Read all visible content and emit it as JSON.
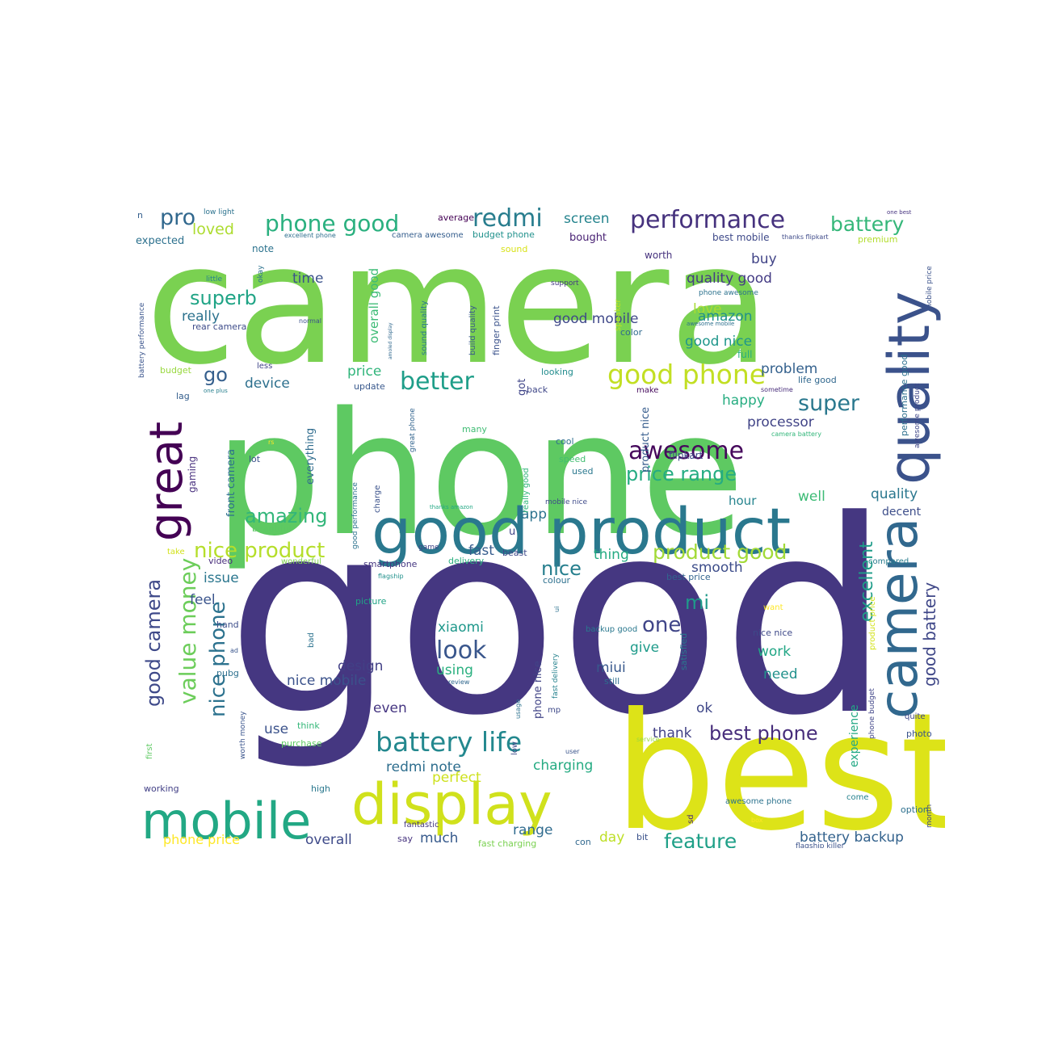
{
  "words": [
    {
      "t": "camera",
      "c": "#7ad151"
    },
    {
      "t": "phone",
      "c": "#5ec962"
    },
    {
      "t": "good",
      "c": "#453781"
    },
    {
      "t": "best",
      "c": "#dde318"
    },
    {
      "t": "good product",
      "c": "#2a788e"
    },
    {
      "t": "display",
      "c": "#d0e11c"
    },
    {
      "t": "mobile",
      "c": "#22a884"
    },
    {
      "t": "quality",
      "c": "#3b528b"
    },
    {
      "t": "camera",
      "c": "#31688e"
    },
    {
      "t": "great",
      "c": "#440154"
    },
    {
      "t": "battery life",
      "c": "#23888e"
    },
    {
      "t": "good phone",
      "c": "#c2df23"
    },
    {
      "t": "performance",
      "c": "#46327e"
    },
    {
      "t": "phone good",
      "c": "#2ab07f"
    },
    {
      "t": "redmi",
      "c": "#287d8e"
    },
    {
      "t": "battery",
      "c": "#35b779"
    },
    {
      "t": "pro",
      "c": "#31688e"
    },
    {
      "t": "better",
      "c": "#1f9e89"
    },
    {
      "t": "awesome",
      "c": "#46085c"
    },
    {
      "t": "price range",
      "c": "#25ac82"
    },
    {
      "t": "super",
      "c": "#2a788e"
    },
    {
      "t": "superb",
      "c": "#20a486"
    },
    {
      "t": "value money",
      "c": "#6ccd5a"
    },
    {
      "t": "nice product",
      "c": "#b5de2b"
    },
    {
      "t": "product good",
      "c": "#a2da37"
    },
    {
      "t": "good camera",
      "c": "#3e4989"
    },
    {
      "t": "nice phone",
      "c": "#2c728e"
    },
    {
      "t": "amazing",
      "c": "#32b67a"
    },
    {
      "t": "excellent",
      "c": "#1e9c89"
    },
    {
      "t": "good battery",
      "c": "#3f4788"
    },
    {
      "t": "look",
      "c": "#39568c"
    },
    {
      "t": "one",
      "c": "#404588"
    },
    {
      "t": "feature",
      "c": "#1fa088"
    },
    {
      "t": "best phone",
      "c": "#472d7b"
    },
    {
      "t": "go",
      "c": "#355f8d"
    },
    {
      "t": "nice",
      "c": "#277f8e"
    },
    {
      "t": "mi",
      "c": "#1f9a8a"
    },
    {
      "t": "loved",
      "c": "#addc30"
    },
    {
      "t": "screen",
      "c": "#25848e"
    },
    {
      "t": "quality good",
      "c": "#443b84"
    },
    {
      "t": "buy",
      "c": "#414487"
    },
    {
      "t": "time",
      "c": "#3b528b"
    },
    {
      "t": "really",
      "c": "#2c728e"
    },
    {
      "t": "love",
      "c": "#a8db34"
    },
    {
      "t": "amazon",
      "c": "#21918c"
    },
    {
      "t": "good mobile",
      "c": "#3f4889"
    },
    {
      "t": "good nice",
      "c": "#1f968b"
    },
    {
      "t": "overall good",
      "c": "#3cbb75"
    },
    {
      "t": "device",
      "c": "#2d708e"
    },
    {
      "t": "price",
      "c": "#31b57b"
    },
    {
      "t": "processor",
      "c": "#414487"
    },
    {
      "t": "problem",
      "c": "#34618d"
    },
    {
      "t": "happy",
      "c": "#27ad81"
    },
    {
      "t": "fast",
      "c": "#365c8d"
    },
    {
      "t": "issue",
      "c": "#2a768e"
    },
    {
      "t": "feel",
      "c": "#3a548c"
    },
    {
      "t": "thing",
      "c": "#25ab82"
    },
    {
      "t": "smooth",
      "c": "#3d4d8a"
    },
    {
      "t": "app",
      "c": "#2c738e"
    },
    {
      "t": "well",
      "c": "#3cbb75"
    },
    {
      "t": "quality",
      "c": "#2a778e"
    },
    {
      "t": "hour",
      "c": "#25848e"
    },
    {
      "t": "decent",
      "c": "#3d4e8a"
    },
    {
      "t": "xiaomi",
      "c": "#1f988b"
    },
    {
      "t": "design",
      "c": "#424086"
    },
    {
      "t": "nice mobile",
      "c": "#3b528b"
    },
    {
      "t": "using",
      "c": "#2ab07f"
    },
    {
      "t": "give",
      "c": "#1e9b8a"
    },
    {
      "t": "miui",
      "c": "#38588c"
    },
    {
      "t": "work",
      "c": "#21a685"
    },
    {
      "t": "need",
      "c": "#21918c"
    },
    {
      "t": "even",
      "c": "#453581"
    },
    {
      "t": "use",
      "c": "#3b528b"
    },
    {
      "t": "redmi note",
      "c": "#2e6e8e"
    },
    {
      "t": "charging",
      "c": "#25ab82"
    },
    {
      "t": "perfect",
      "c": "#cde11d"
    },
    {
      "t": "thank",
      "c": "#424186"
    },
    {
      "t": "ok",
      "c": "#3f4788"
    },
    {
      "t": "overall",
      "c": "#3e4a89"
    },
    {
      "t": "much",
      "c": "#375a8c"
    },
    {
      "t": "range",
      "c": "#2f6b8e"
    },
    {
      "t": "day",
      "c": "#bddf26"
    },
    {
      "t": "battery backup",
      "c": "#33628d"
    },
    {
      "t": "phone price",
      "c": "#fde725"
    },
    {
      "t": "expected",
      "c": "#2d718e"
    },
    {
      "t": "average",
      "c": "#440154"
    },
    {
      "t": "bought",
      "c": "#482173"
    },
    {
      "t": "worth",
      "c": "#46327e"
    },
    {
      "t": "best mobile",
      "c": "#3e4989"
    },
    {
      "t": "premium",
      "c": "#b2dd2d"
    },
    {
      "t": "note",
      "c": "#2c738e"
    },
    {
      "t": "excellent phone",
      "c": "#2e6f8e"
    },
    {
      "t": "camera awesome",
      "c": "#355e8d"
    },
    {
      "t": "budget phone",
      "c": "#21918c"
    },
    {
      "t": "sound",
      "c": "#d8e219"
    },
    {
      "t": "rear camera",
      "c": "#3e4c8a"
    },
    {
      "t": "little",
      "c": "#26828e"
    },
    {
      "t": "support",
      "c": "#443983"
    },
    {
      "t": "phone awesome",
      "c": "#2c728e"
    },
    {
      "t": "awesome mobile",
      "c": "#2d708e"
    },
    {
      "t": "color",
      "c": "#306a8e"
    },
    {
      "t": "full",
      "c": "#29af7f"
    },
    {
      "t": "life good",
      "c": "#31688e"
    },
    {
      "t": "sometime",
      "c": "#472c7a"
    },
    {
      "t": "make",
      "c": "#460a5d"
    },
    {
      "t": "back",
      "c": "#3f4788"
    },
    {
      "t": "update",
      "c": "#38588c"
    },
    {
      "t": "looking",
      "c": "#228c8d"
    },
    {
      "t": "camera battery",
      "c": "#32b67a"
    },
    {
      "t": "cool",
      "c": "#2e6f8e"
    },
    {
      "t": "speed",
      "c": "#42be71"
    },
    {
      "t": "used",
      "c": "#2a788e"
    },
    {
      "t": "flipkart",
      "c": "#3f4889"
    },
    {
      "t": "lot",
      "c": "#3b528b"
    },
    {
      "t": "gaming",
      "c": "#472f7d"
    },
    {
      "t": "budget",
      "c": "#98d83e"
    },
    {
      "t": "lag",
      "c": "#355f8d"
    },
    {
      "t": "less",
      "c": "#404588"
    },
    {
      "t": "normal",
      "c": "#3b528b"
    },
    {
      "t": "one plus",
      "c": "#277f8e"
    },
    {
      "t": "many",
      "c": "#3fbc73"
    },
    {
      "t": "beautiful",
      "c": "#5cc863"
    },
    {
      "t": "game",
      "c": "#404588"
    },
    {
      "t": "smartphone",
      "c": "#453781"
    },
    {
      "t": "delivery",
      "c": "#2ab07f"
    },
    {
      "t": "beast",
      "c": "#3e4989"
    },
    {
      "t": "colour",
      "c": "#2d708e"
    },
    {
      "t": "best price",
      "c": "#32648e"
    },
    {
      "t": "flagship",
      "c": "#21918c"
    },
    {
      "t": "video",
      "c": "#472d7b"
    },
    {
      "t": "take",
      "c": "#d2e21b"
    },
    {
      "t": "wonderful",
      "c": "#7fd34e"
    },
    {
      "t": "picture",
      "c": "#20a386"
    },
    {
      "t": "hand",
      "c": "#3d4e8a"
    },
    {
      "t": "pubg",
      "c": "#2d708e"
    },
    {
      "t": "ad",
      "c": "#39558c"
    },
    {
      "t": "bad",
      "c": "#2c728e"
    },
    {
      "t": "review",
      "c": "#31688e"
    },
    {
      "t": "still",
      "c": "#2e6d8e"
    },
    {
      "t": "backup good",
      "c": "#2a788e"
    },
    {
      "t": "want",
      "c": "#fde725"
    },
    {
      "t": "nice nice",
      "c": "#3e4989"
    },
    {
      "t": "quite",
      "c": "#3f4788"
    },
    {
      "t": "photo",
      "c": "#3a548c"
    },
    {
      "t": "option",
      "c": "#2d708e"
    },
    {
      "t": "come",
      "c": "#26828e"
    },
    {
      "t": "awesome phone",
      "c": "#2c738e"
    },
    {
      "t": "box",
      "c": "#fde725"
    },
    {
      "t": "flagship killer",
      "c": "#3b528b"
    },
    {
      "t": "think",
      "c": "#35b779"
    },
    {
      "t": "purchase",
      "c": "#5ec962"
    },
    {
      "t": "high",
      "c": "#2a788e"
    },
    {
      "t": "working",
      "c": "#424086"
    },
    {
      "t": "fantastic",
      "c": "#453781"
    },
    {
      "t": "say",
      "c": "#46337f"
    },
    {
      "t": "con",
      "c": "#31688e"
    },
    {
      "t": "bit",
      "c": "#3b528b"
    },
    {
      "t": "fast charging",
      "c": "#7ad151"
    },
    {
      "t": "mp",
      "c": "#3e4989"
    },
    {
      "t": "usage",
      "c": "#2c728e"
    },
    {
      "t": "user",
      "c": "#3a548c"
    },
    {
      "t": "service",
      "c": "#98d83e"
    },
    {
      "t": "sd",
      "c": "#482878"
    },
    {
      "t": "thanks amazon",
      "c": "#22a884"
    },
    {
      "t": "mobile nice",
      "c": "#3e4a89"
    },
    {
      "t": "rs",
      "c": "#fde725"
    },
    {
      "t": "compared",
      "c": "#287c8e"
    },
    {
      "t": "n",
      "c": "#355f8d"
    },
    {
      "t": "low light",
      "c": "#2c728e"
    },
    {
      "t": "one best",
      "c": "#46337f"
    },
    {
      "t": "thanks flipkart",
      "c": "#3e4a89"
    },
    {
      "t": "battery performance",
      "c": "#3a548c"
    },
    {
      "t": "okay",
      "c": "#2c728e"
    },
    {
      "t": "amoled display",
      "c": "#31688e"
    },
    {
      "t": "sound quality",
      "c": "#2a788e"
    },
    {
      "t": "build quality",
      "c": "#38588c"
    },
    {
      "t": "finger print",
      "c": "#3b528b"
    },
    {
      "t": "speaker",
      "c": "#bddf26"
    },
    {
      "t": "front camera",
      "c": "#2d708e"
    },
    {
      "t": "everything",
      "c": "#2f6c8e"
    },
    {
      "t": "great phone",
      "c": "#32648e"
    },
    {
      "t": "got",
      "c": "#404588"
    },
    {
      "t": "charge",
      "c": "#3b528b"
    },
    {
      "t": "good performance",
      "c": "#2c728e"
    },
    {
      "t": "really good",
      "c": "#31b57b"
    },
    {
      "t": "product nice",
      "c": "#365c8d"
    },
    {
      "t": "u",
      "c": "#404588"
    },
    {
      "t": "phone nice",
      "c": "#414487"
    },
    {
      "t": "fast delivery",
      "c": "#26828e"
    },
    {
      "t": "low",
      "c": "#3e4989"
    },
    {
      "t": "satisfied",
      "c": "#2a768e"
    },
    {
      "t": "ui",
      "c": "#2c728e"
    },
    {
      "t": "performance good",
      "c": "#2d708e"
    },
    {
      "t": "awesome product",
      "c": "#3f4788"
    },
    {
      "t": "mobile price",
      "c": "#3b528b"
    },
    {
      "t": "phone budget",
      "c": "#404588"
    },
    {
      "t": "product price",
      "c": "#d2e21b"
    },
    {
      "t": "worth money",
      "c": "#3a548c"
    },
    {
      "t": "first",
      "c": "#5ec962"
    },
    {
      "t": "month",
      "c": "#3e4989"
    },
    {
      "t": "experience",
      "c": "#22a884"
    }
  ]
}
